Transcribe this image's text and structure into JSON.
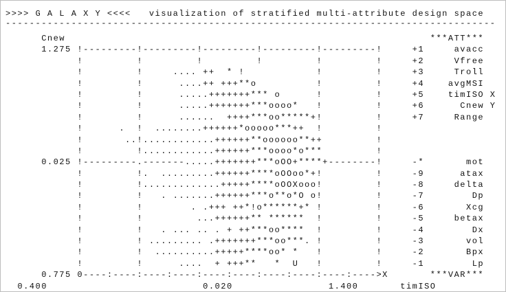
{
  "lines": [
    ">>>> G A L A X Y <<<<   visualization of stratified multi-attribute design space",
    "----------------------------------------------------------------------------------",
    "      Cnew                                                             ***ATT***",
    "      1.275 !---------!---------!---------!---------!---------!     +1     avacc",
    "            !         !         !         !         !         !     +2     Vfree",
    "            !         !     .... ++  * !            !         !     +3     Troll",
    "            !         !      ....++ +++**o          !         !     +4    avgMSI",
    "            !         !      .....+++++++*** o      !         !     +5    timISO X",
    "            !         !      .....+++++++***oooo*   !         !     +6      Cnew Y",
    "            !         !      ......  ++++***oo*****+!         !     +7     Range",
    "            !      .  !  ........++++++*ooooo***++  !         !",
    "            !       ..!............++++++**oooooo**++         !",
    "            !         !............++++++***oooo*o***         !",
    "      0.025 !---------.-------.....+++++++***oOO+****+--------!     -*       mot",
    "            !         !.  .........++++++****oOOoo*+!         !     -9      atax",
    "            !         !.............+++++****oOOXooo!         !     -8     delta",
    "            !         !   . .......++++++***o**o*O o!         !     -7        Dp",
    "            !         !        . .+++ ++*!o******+* !         !     -6       Xcg",
    "            !         !         ...++++++** ******  !         !     -5     betax",
    "            !         !   . ... .. . + ++***oo****  !         !     -4        Dx",
    "            !         ! ......... .+++++++***oo***. !         !     -3       vol",
    "            !         !  ..........+++++****oo* *   !         !     -2       Bpx",
    "            !         !      ....  + +++**   *  U   !         !     -1        Lp",
    "      0.775 0----:----:----:----:----:----:----:----:----:---->X       ***VAR***",
    "  0.400                          0.020                1.400       timISO"
  ]
}
